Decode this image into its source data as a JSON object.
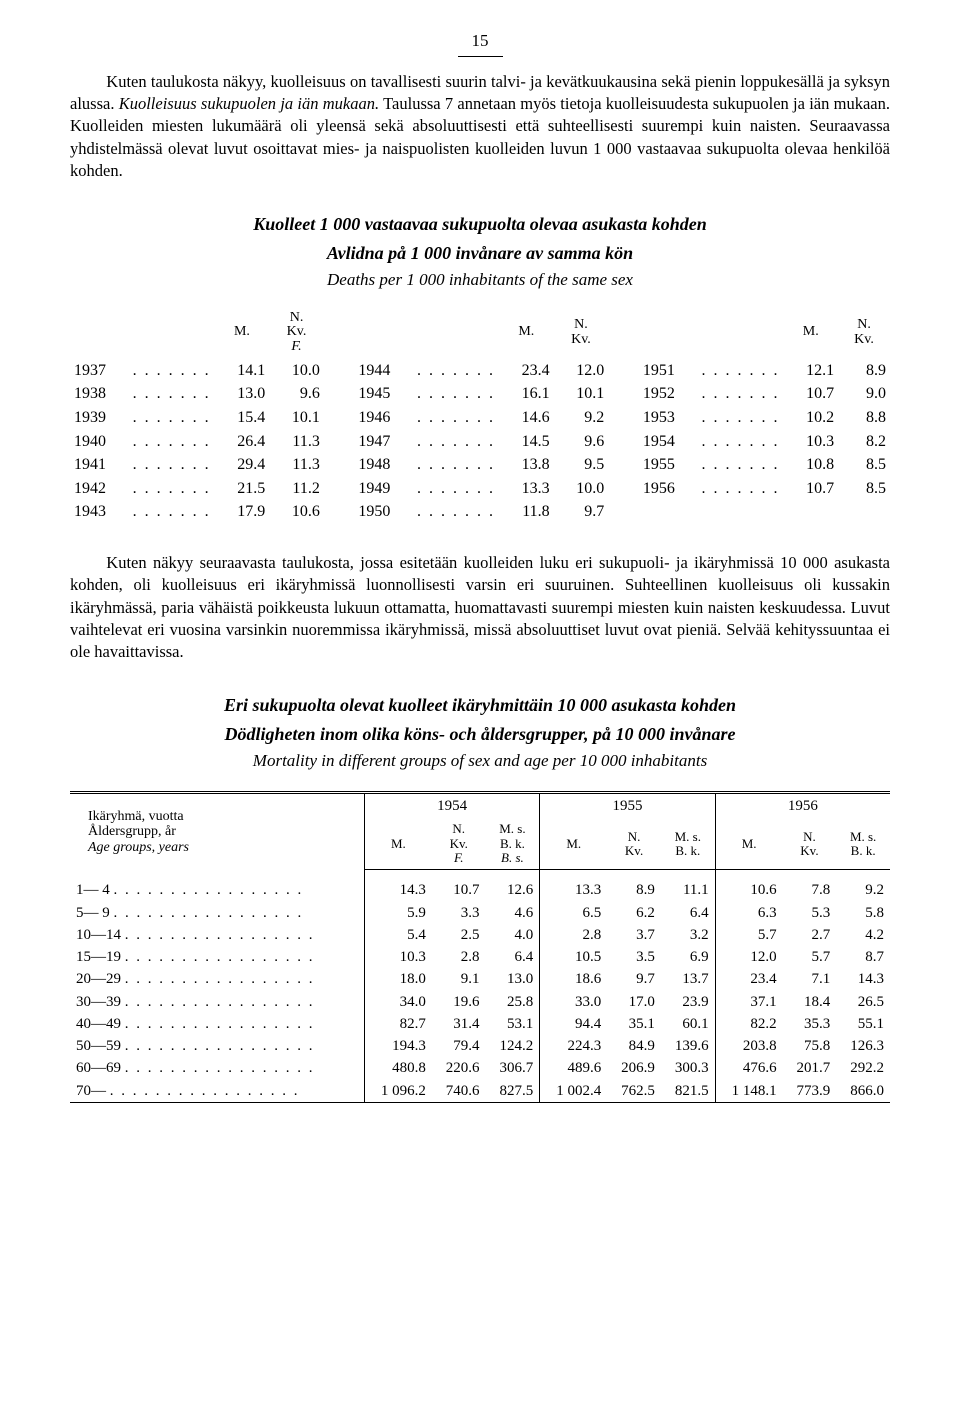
{
  "page_number": "15",
  "p1": {
    "s1a": "Kuten taulukosta näkyy, kuolleisuus on tavallisesti suurin talvi- ja kevätkuukausina sekä pienin loppukesällä ja syksyn alussa. ",
    "s1_it": "Kuolleisuus sukupuolen ja iän mukaan.",
    "s1b": " Taulussa 7 annetaan myös tietoja kuolleisuudesta sukupuolen ja iän mukaan. Kuolleiden miesten lukumäärä oli yleensä sekä absoluuttisesti että suhteellisesti suurempi kuin naisten. Seuraavassa yhdistelmässä olevat luvut osoittavat mies- ja naispuolisten kuolleiden luvun 1 000 vastaavaa sukupuolta olevaa henkilöä kohden."
  },
  "h1": {
    "fi": "Kuolleet 1 000 vastaavaa sukupuolta olevaa asukasta kohden",
    "sv": "Avlidna på 1 000 invånare av samma kön",
    "en": "Deaths per 1 000 inhabitants of the same sex"
  },
  "rate_hdr": {
    "m": "M.",
    "f_l1": "N.",
    "f_l2": "Kv.",
    "f_l3": "F."
  },
  "rates": [
    {
      "y": "1937",
      "m": "14.1",
      "f": "10.0"
    },
    {
      "y": "1938",
      "m": "13.0",
      "f": "9.6"
    },
    {
      "y": "1939",
      "m": "15.4",
      "f": "10.1"
    },
    {
      "y": "1940",
      "m": "26.4",
      "f": "11.3"
    },
    {
      "y": "1941",
      "m": "29.4",
      "f": "11.3"
    },
    {
      "y": "1942",
      "m": "21.5",
      "f": "11.2"
    },
    {
      "y": "1943",
      "m": "17.9",
      "f": "10.6"
    },
    {
      "y": "1944",
      "m": "23.4",
      "f": "12.0"
    },
    {
      "y": "1945",
      "m": "16.1",
      "f": "10.1"
    },
    {
      "y": "1946",
      "m": "14.6",
      "f": "9.2"
    },
    {
      "y": "1947",
      "m": "14.5",
      "f": "9.6"
    },
    {
      "y": "1948",
      "m": "13.8",
      "f": "9.5"
    },
    {
      "y": "1949",
      "m": "13.3",
      "f": "10.0"
    },
    {
      "y": "1950",
      "m": "11.8",
      "f": "9.7"
    },
    {
      "y": "1951",
      "m": "12.1",
      "f": "8.9"
    },
    {
      "y": "1952",
      "m": "10.7",
      "f": "9.0"
    },
    {
      "y": "1953",
      "m": "10.2",
      "f": "8.8"
    },
    {
      "y": "1954",
      "m": "10.3",
      "f": "8.2"
    },
    {
      "y": "1955",
      "m": "10.8",
      "f": "8.5"
    },
    {
      "y": "1956",
      "m": "10.7",
      "f": "8.5"
    }
  ],
  "p2": "Kuten näkyy seuraavasta taulukosta, jossa esitetään kuolleiden luku eri sukupuoli- ja ikäryhmissä 10 000 asukasta kohden, oli kuolleisuus eri ikäryhmissä luonnollisesti varsin eri suuruinen. Suhteellinen kuolleisuus oli kussakin ikäryhmässä, paria vähäistä poikkeusta lukuun ottamatta, huomattavasti suurempi miesten kuin naisten keskuudessa. Luvut vaihtelevat eri vuosina varsinkin nuoremmissa ikäryhmissä, missä absoluuttiset luvut ovat pieniä. Selvää kehityssuuntaa ei ole havaittavissa.",
  "h2": {
    "fi": "Eri sukupuolta olevat kuolleet ikäryhmittäin 10 000 asukasta kohden",
    "sv": "Dödligheten inom olika köns- och åldersgrupper, på 10 000 invånare",
    "en": "Mortality in different groups of sex and age per 10 000 inhabitants"
  },
  "mort_hdr": {
    "age_l1": "Ikäryhmä, vuotta",
    "age_l2": "Åldersgrupp, år",
    "age_l3": "Age groups, years",
    "y1954": "1954",
    "y1955": "1955",
    "y1956": "1956",
    "m": "M.",
    "f_l1": "N.",
    "f_l2": "Kv.",
    "f_l3": "F.",
    "b_l1": "M. s.",
    "b_l2": "B. k.",
    "b_l3": "B. s."
  },
  "mort_rows": [
    {
      "age": "1— 4",
      "v": [
        "14.3",
        "10.7",
        "12.6",
        "13.3",
        "8.9",
        "11.1",
        "10.6",
        "7.8",
        "9.2"
      ]
    },
    {
      "age": "5— 9",
      "v": [
        "5.9",
        "3.3",
        "4.6",
        "6.5",
        "6.2",
        "6.4",
        "6.3",
        "5.3",
        "5.8"
      ]
    },
    {
      "age": "10—14",
      "v": [
        "5.4",
        "2.5",
        "4.0",
        "2.8",
        "3.7",
        "3.2",
        "5.7",
        "2.7",
        "4.2"
      ]
    },
    {
      "age": "15—19",
      "v": [
        "10.3",
        "2.8",
        "6.4",
        "10.5",
        "3.5",
        "6.9",
        "12.0",
        "5.7",
        "8.7"
      ]
    },
    {
      "age": "20—29",
      "v": [
        "18.0",
        "9.1",
        "13.0",
        "18.6",
        "9.7",
        "13.7",
        "23.4",
        "7.1",
        "14.3"
      ]
    },
    {
      "age": "30—39",
      "v": [
        "34.0",
        "19.6",
        "25.8",
        "33.0",
        "17.0",
        "23.9",
        "37.1",
        "18.4",
        "26.5"
      ]
    },
    {
      "age": "40—49",
      "v": [
        "82.7",
        "31.4",
        "53.1",
        "94.4",
        "35.1",
        "60.1",
        "82.2",
        "35.3",
        "55.1"
      ]
    },
    {
      "age": "50—59",
      "v": [
        "194.3",
        "79.4",
        "124.2",
        "224.3",
        "84.9",
        "139.6",
        "203.8",
        "75.8",
        "126.3"
      ]
    },
    {
      "age": "60—69",
      "v": [
        "480.8",
        "220.6",
        "306.7",
        "489.6",
        "206.9",
        "300.3",
        "476.6",
        "201.7",
        "292.2"
      ]
    },
    {
      "age": "70—",
      "v": [
        "1 096.2",
        "740.6",
        "827.5",
        "1 002.4",
        "762.5",
        "821.5",
        "1 148.1",
        "773.9",
        "866.0"
      ]
    }
  ],
  "dots_short": ". . . . . . .",
  "dots_long": ". . . . . . . . . . . . . . . . .",
  "colors": {
    "bg": "#ffffff",
    "fg": "#000000"
  }
}
